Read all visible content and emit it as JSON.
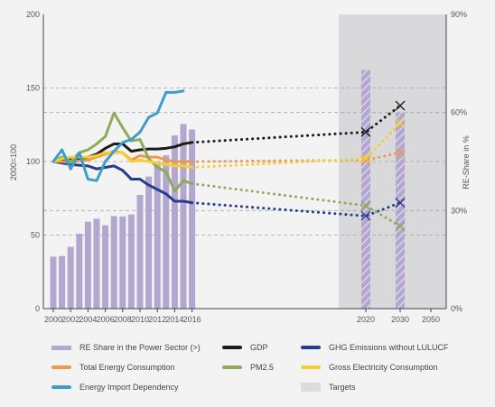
{
  "chart_data": {
    "type": "line",
    "title": "",
    "x_years": [
      2000,
      2001,
      2002,
      2003,
      2004,
      2005,
      2006,
      2007,
      2008,
      2009,
      2010,
      2011,
      2012,
      2013,
      2014,
      2015,
      2016
    ],
    "x_tick_labels": [
      "2000",
      "2002",
      "2004",
      "2006",
      "2008",
      "2010",
      "2012",
      "2014",
      "2016",
      "2020",
      "2030",
      "2050"
    ],
    "y_left": {
      "label": "2000=100",
      "ticks": [
        "0",
        "50",
        "100",
        "150",
        "200"
      ],
      "range": [
        0,
        200
      ]
    },
    "y_right": {
      "label": "RE-Share in %",
      "ticks": [
        "0%",
        "30%",
        "60%",
        "90%"
      ],
      "range": [
        0,
        90
      ]
    },
    "targets_label": "Targets",
    "bars": {
      "name": "RE Share in the Power Sector (>)",
      "color": "#b3a6cf",
      "values_pct": [
        15.9,
        16.1,
        18.9,
        22.9,
        26.6,
        27.5,
        25.5,
        28.3,
        28.2,
        28.8,
        34.8,
        40.4,
        44.1,
        46.9,
        53.0,
        56.5,
        54.8
      ],
      "targets": {
        "2020": 73,
        "2030": 60
      }
    },
    "series": [
      {
        "name": "GDP",
        "color": "#1b1b1b",
        "values": [
          100,
          101,
          102,
          101.5,
          103,
          105,
          109,
          112,
          112,
          107,
          108,
          108.5,
          108.5,
          109,
          110,
          112,
          113
        ],
        "targets": {
          "2020": 120,
          "2030": 138
        }
      },
      {
        "name": "GHG Emissions without LULUCF",
        "color": "#283c8c",
        "values": [
          100,
          99,
          98,
          97.5,
          97,
          95,
          96,
          97,
          94,
          88,
          88,
          84,
          81,
          78,
          73,
          73,
          72
        ],
        "targets": {
          "2020": 63,
          "2030": 72
        }
      },
      {
        "name": "Total Energy Consumption",
        "color": "#f0984a",
        "values": [
          100,
          100,
          99.5,
          100.5,
          101,
          103,
          105,
          107,
          106,
          101,
          104,
          103,
          103,
          101,
          100,
          100,
          100
        ],
        "targets": {
          "2020": 101,
          "2030": 106
        }
      },
      {
        "name": "PM2.5",
        "color": "#8faa5a",
        "values": [
          100,
          103,
          100,
          106,
          108,
          112,
          117,
          133,
          123,
          114,
          115,
          102,
          96,
          93,
          80,
          87,
          85
        ],
        "targets": {
          "2020": 70,
          "2030": 56
        }
      },
      {
        "name": "Gross Electricity Consumption",
        "color": "#f4cf2e",
        "values": [
          100,
          102,
          103,
          103,
          103,
          104,
          106,
          106,
          106,
          100,
          101,
          100,
          99,
          98,
          97,
          97,
          96
        ],
        "targets": {
          "2020": 102,
          "2030": 126
        }
      },
      {
        "name": "Energy Import Dependency",
        "color": "#3d9dcb",
        "values": [
          100,
          108,
          95,
          106,
          88,
          87,
          100,
          107,
          113,
          115,
          120,
          130,
          133,
          147,
          147,
          148,
          null
        ]
      }
    ]
  },
  "legend": [
    {
      "label": "RE Share in the Power Sector (>)",
      "color": "#b3a6cf",
      "kind": "bar"
    },
    {
      "label": "GDP",
      "color": "#1b1b1b",
      "kind": "line"
    },
    {
      "label": "GHG Emissions without LULUCF",
      "color": "#283c8c",
      "kind": "line"
    },
    {
      "label": "Total Energy Consumption",
      "color": "#f0984a",
      "kind": "line"
    },
    {
      "label": "PM2.5",
      "color": "#8faa5a",
      "kind": "line"
    },
    {
      "label": "Gross Electricity Consumption",
      "color": "#f4cf2e",
      "kind": "line"
    },
    {
      "label": "Energy Import Dependency",
      "color": "#3d9dcb",
      "kind": "line"
    },
    {
      "label": "Targets",
      "color": "#dcdcdf",
      "kind": "box"
    }
  ]
}
